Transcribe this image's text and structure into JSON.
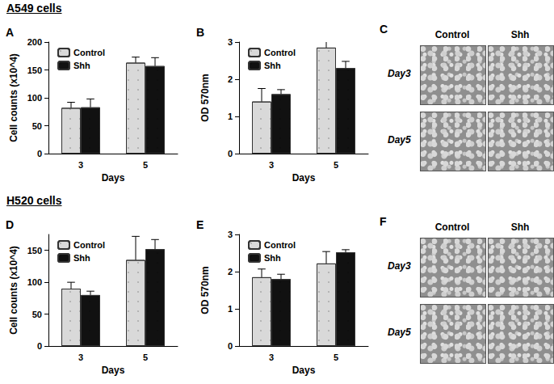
{
  "sections": [
    "A549 cells",
    "H520 cells"
  ],
  "chart_data": [
    {
      "type": "bar",
      "title": "A",
      "x_label": "Days",
      "y_label": "Cell counts (x10^4)",
      "categories": [
        "3",
        "5"
      ],
      "series": [
        {
          "name": "Control",
          "color": "#d9d9d9",
          "values": [
            82,
            163
          ],
          "errors": [
            10,
            10
          ]
        },
        {
          "name": "Shh",
          "color": "#111111",
          "values": [
            83,
            157
          ],
          "errors": [
            15,
            15
          ]
        }
      ],
      "ylim": [
        0,
        200
      ],
      "yticks": [
        0,
        50,
        100,
        150,
        200
      ],
      "grid": false,
      "legend": "top-left"
    },
    {
      "type": "bar",
      "title": "B",
      "x_label": "Days",
      "y_label": "OD 570nm",
      "categories": [
        "3",
        "5"
      ],
      "series": [
        {
          "name": "Control",
          "color": "#d9d9d9",
          "values": [
            1.4,
            2.85
          ],
          "errors": [
            0.35,
            0.2
          ]
        },
        {
          "name": "Shh",
          "color": "#111111",
          "values": [
            1.6,
            2.3
          ],
          "errors": [
            0.12,
            0.18
          ]
        }
      ],
      "ylim": [
        0,
        3
      ],
      "yticks": [
        0,
        1,
        2,
        3
      ],
      "grid": false,
      "legend": "top-left"
    },
    {
      "type": "bar",
      "title": "D",
      "x_label": "Days",
      "y_label": "Cell counts (x10^4)",
      "categories": [
        "3",
        "5"
      ],
      "series": [
        {
          "name": "Control",
          "color": "#d9d9d9",
          "values": [
            90,
            135
          ],
          "errors": [
            10,
            37
          ]
        },
        {
          "name": "Shh",
          "color": "#111111",
          "values": [
            80,
            152
          ],
          "errors": [
            6,
            15
          ]
        }
      ],
      "ylim": [
        0,
        175
      ],
      "yticks": [
        0,
        50,
        100,
        150
      ],
      "grid": false,
      "legend": "top-left"
    },
    {
      "type": "bar",
      "title": "E",
      "x_label": "Days",
      "y_label": "OD 570nm",
      "categories": [
        "3",
        "5"
      ],
      "series": [
        {
          "name": "Control",
          "color": "#d9d9d9",
          "values": [
            1.85,
            2.22
          ],
          "errors": [
            0.22,
            0.32
          ]
        },
        {
          "name": "Shh",
          "color": "#111111",
          "values": [
            1.8,
            2.52
          ],
          "errors": [
            0.13,
            0.07
          ]
        }
      ],
      "ylim": [
        0,
        3
      ],
      "yticks": [
        0,
        1,
        2,
        3
      ],
      "grid": false,
      "legend": "top-left"
    }
  ],
  "images": [
    {
      "title": "C",
      "columns": [
        "Control",
        "Shh"
      ],
      "rows": [
        "Day3",
        "Day5"
      ]
    },
    {
      "title": "F",
      "columns": [
        "Control",
        "Shh"
      ],
      "rows": [
        "Day3",
        "Day5"
      ]
    }
  ]
}
